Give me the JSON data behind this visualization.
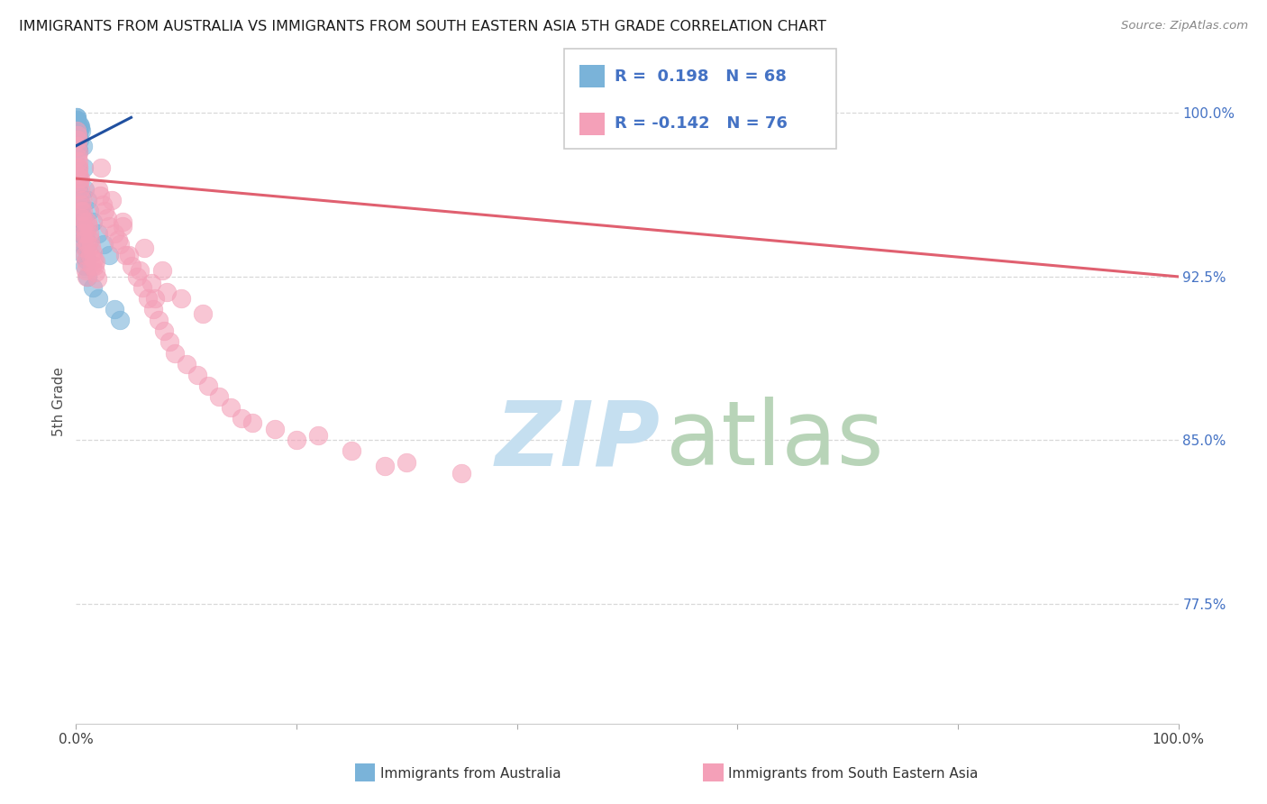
{
  "title": "IMMIGRANTS FROM AUSTRALIA VS IMMIGRANTS FROM SOUTH EASTERN ASIA 5TH GRADE CORRELATION CHART",
  "source": "Source: ZipAtlas.com",
  "ylabel": "5th Grade",
  "right_ytick_values": [
    100.0,
    92.5,
    85.0,
    77.5
  ],
  "right_ytick_labels": [
    "100.0%",
    "92.5%",
    "85.0%",
    "77.5%"
  ],
  "blue_scatter_x": [
    0.02,
    0.03,
    0.03,
    0.04,
    0.04,
    0.05,
    0.05,
    0.06,
    0.06,
    0.07,
    0.07,
    0.08,
    0.08,
    0.09,
    0.09,
    0.1,
    0.1,
    0.11,
    0.11,
    0.12,
    0.12,
    0.13,
    0.13,
    0.14,
    0.15,
    0.15,
    0.16,
    0.17,
    0.18,
    0.19,
    0.2,
    0.22,
    0.25,
    0.28,
    0.3,
    0.35,
    0.4,
    0.5,
    0.6,
    0.7,
    0.8,
    1.0,
    1.2,
    1.5,
    2.0,
    2.5,
    3.0,
    0.15,
    0.2,
    0.18,
    0.25,
    0.3,
    0.4,
    0.5,
    0.6,
    0.7,
    0.8,
    1.0,
    1.5,
    2.0,
    3.5,
    4.0,
    0.45,
    0.55,
    0.65,
    0.75,
    0.85,
    0.95
  ],
  "blue_scatter_y": [
    99.8,
    99.7,
    99.6,
    99.5,
    99.4,
    99.8,
    99.3,
    99.7,
    99.2,
    99.6,
    99.1,
    99.5,
    99.0,
    99.4,
    98.9,
    99.3,
    98.8,
    99.2,
    98.7,
    99.1,
    98.6,
    99.0,
    98.5,
    98.9,
    99.4,
    98.4,
    98.8,
    99.3,
    98.3,
    99.2,
    99.1,
    99.0,
    98.9,
    98.8,
    99.5,
    99.4,
    99.3,
    99.2,
    98.5,
    97.5,
    96.5,
    96.0,
    95.5,
    95.0,
    94.5,
    94.0,
    93.5,
    97.5,
    97.0,
    96.5,
    96.0,
    95.5,
    95.0,
    94.5,
    94.0,
    93.5,
    93.0,
    92.5,
    92.0,
    91.5,
    91.0,
    90.5,
    95.8,
    95.3,
    94.8,
    94.3,
    93.8,
    93.3
  ],
  "pink_scatter_x": [
    0.08,
    0.1,
    0.12,
    0.15,
    0.18,
    0.2,
    0.22,
    0.25,
    0.28,
    0.3,
    0.35,
    0.4,
    0.45,
    0.5,
    0.55,
    0.6,
    0.65,
    0.7,
    0.75,
    0.8,
    0.85,
    0.9,
    0.95,
    1.0,
    1.1,
    1.2,
    1.3,
    1.4,
    1.5,
    1.6,
    1.7,
    1.8,
    1.9,
    2.0,
    2.2,
    2.4,
    2.6,
    2.8,
    3.0,
    3.5,
    4.0,
    4.5,
    5.0,
    5.5,
    6.0,
    6.5,
    7.0,
    7.5,
    8.0,
    8.5,
    0.15,
    0.25,
    0.35,
    0.55,
    0.65,
    0.75,
    0.85,
    1.05,
    1.25,
    1.45,
    9.0,
    10.0,
    11.0,
    12.0,
    13.0,
    14.0,
    15.0,
    18.0,
    20.0,
    25.0,
    30.0,
    35.0,
    7.2,
    2.3,
    3.2,
    4.2
  ],
  "pink_scatter_y": [
    99.2,
    98.8,
    98.5,
    99.0,
    98.2,
    97.8,
    97.5,
    97.2,
    97.0,
    96.8,
    96.5,
    96.2,
    95.8,
    95.5,
    95.2,
    94.8,
    94.5,
    94.2,
    93.8,
    93.5,
    93.2,
    92.8,
    92.5,
    95.0,
    94.8,
    94.5,
    94.2,
    93.9,
    93.6,
    93.3,
    93.0,
    92.7,
    92.4,
    96.5,
    96.2,
    95.8,
    95.5,
    95.2,
    94.8,
    94.5,
    94.0,
    93.5,
    93.0,
    92.5,
    92.0,
    91.5,
    91.0,
    90.5,
    90.0,
    89.5,
    98.0,
    97.5,
    97.0,
    96.0,
    95.5,
    95.0,
    94.5,
    94.0,
    93.5,
    93.0,
    89.0,
    88.5,
    88.0,
    87.5,
    87.0,
    86.5,
    86.0,
    85.5,
    85.0,
    84.5,
    84.0,
    83.5,
    91.5,
    97.5,
    96.0,
    95.0
  ],
  "pink_scatter_extra_x": [
    3.8,
    1.8,
    5.8,
    4.8,
    6.8,
    8.2,
    9.5,
    11.5,
    16.0,
    22.0,
    28.0,
    4.2,
    6.2,
    7.8
  ],
  "pink_scatter_extra_y": [
    94.2,
    93.2,
    92.8,
    93.5,
    92.2,
    91.8,
    91.5,
    90.8,
    85.8,
    85.2,
    83.8,
    94.8,
    93.8,
    92.8
  ],
  "blue_trend_x": [
    0,
    5
  ],
  "blue_trend_y": [
    98.5,
    99.8
  ],
  "pink_trend_x": [
    0,
    100
  ],
  "pink_trend_y": [
    97.0,
    92.5
  ],
  "xlim": [
    0,
    100
  ],
  "ylim": [
    72,
    101.5
  ],
  "blue_color": "#7ab3d9",
  "pink_color": "#f4a0b8",
  "blue_line_color": "#2050a0",
  "pink_line_color": "#e06070",
  "watermark_zip_color": "#c5dff0",
  "watermark_atlas_color": "#b8d4b8",
  "grid_color": "#d8d8d8",
  "R_blue": "0.198",
  "N_blue": "68",
  "R_pink": "-0.142",
  "N_pink": "76",
  "label_blue": "Immigrants from Australia",
  "label_pink": "Immigrants from South Eastern Asia",
  "legend_color": "#4472c4",
  "x_left_label": "0.0%",
  "x_right_label": "100.0%"
}
